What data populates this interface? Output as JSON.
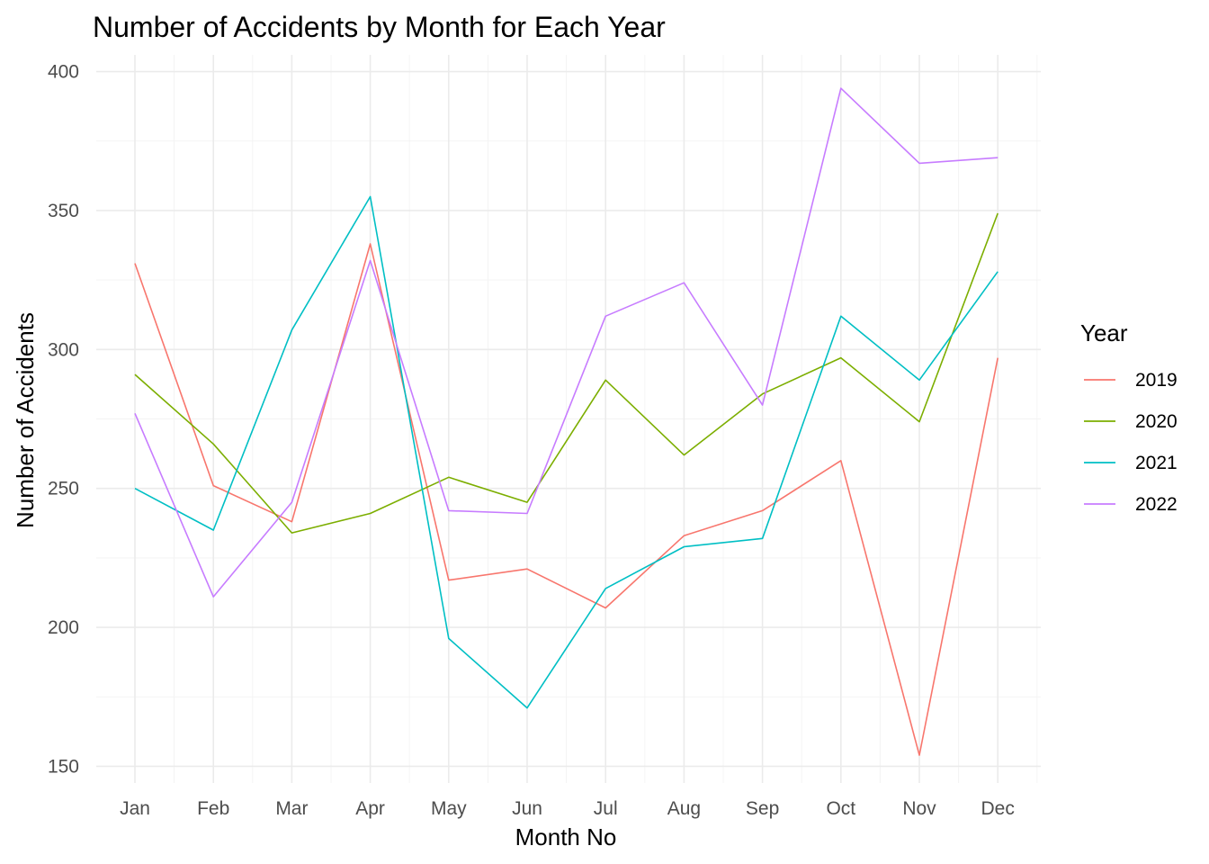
{
  "chart_data": {
    "type": "line",
    "title": "Number of Accidents by Month for Each Year",
    "xlabel": "Month No",
    "ylabel": "Number of Accidents",
    "categories": [
      "Jan",
      "Feb",
      "Mar",
      "Apr",
      "May",
      "Jun",
      "Jul",
      "Aug",
      "Sep",
      "Oct",
      "Nov",
      "Dec"
    ],
    "ylim": [
      144,
      406
    ],
    "yticks": [
      150,
      200,
      250,
      300,
      350,
      400
    ],
    "grid": true,
    "legend": {
      "title": "Year",
      "position": "right"
    },
    "series": [
      {
        "name": "2019",
        "color": "#F8766D",
        "values": [
          331,
          251,
          238,
          338,
          217,
          221,
          207,
          233,
          242,
          260,
          154,
          297
        ]
      },
      {
        "name": "2020",
        "color": "#7CAE00",
        "values": [
          291,
          266,
          234,
          241,
          254,
          245,
          289,
          262,
          284,
          297,
          274,
          349
        ]
      },
      {
        "name": "2021",
        "color": "#00BFC4",
        "values": [
          250,
          235,
          307,
          355,
          196,
          171,
          214,
          229,
          232,
          312,
          289,
          328
        ]
      },
      {
        "name": "2022",
        "color": "#C77CFF",
        "values": [
          277,
          211,
          245,
          332,
          242,
          241,
          312,
          324,
          280,
          394,
          367,
          369
        ]
      }
    ]
  }
}
